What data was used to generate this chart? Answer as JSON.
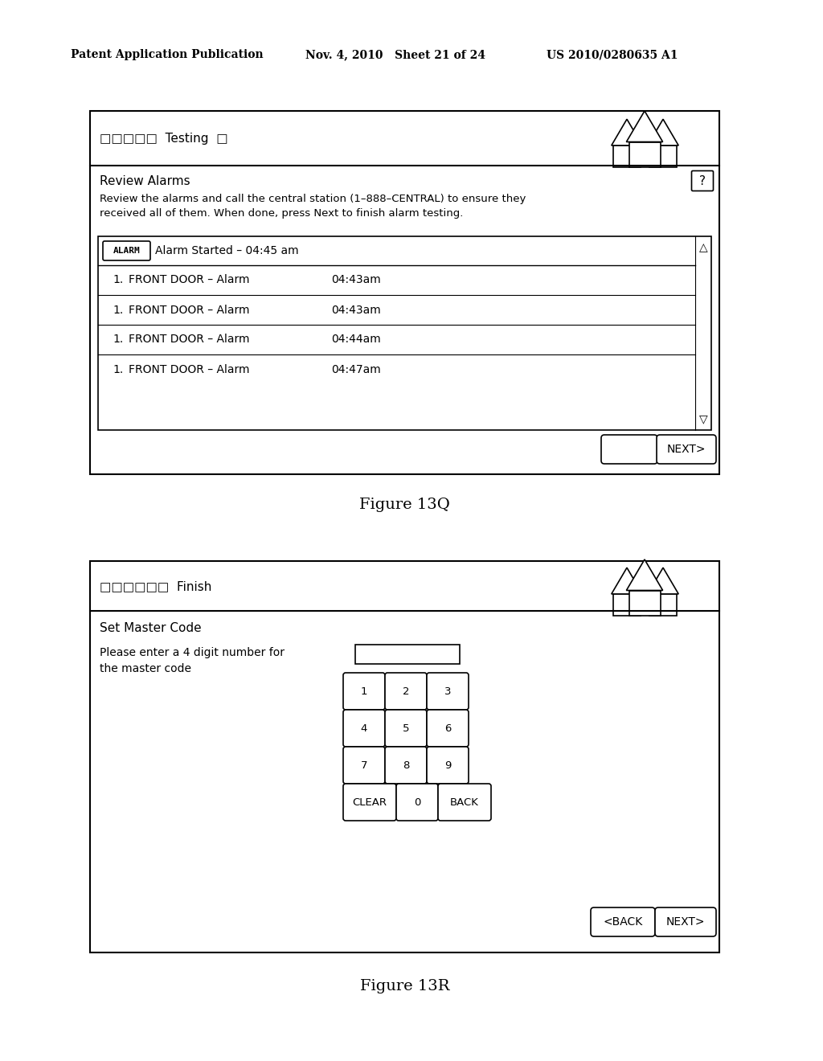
{
  "bg_color": "#ffffff",
  "text_color": "#000000",
  "header_left": "Patent Application Publication",
  "header_mid": "Nov. 4, 2010   Sheet 21 of 24",
  "header_right": "US 2010/0280635 A1",
  "fig13q_label": "Figure 13Q",
  "fig13r_label": "Figure 13R",
  "panel1": {
    "title_text": "□□□□□  Testing  □",
    "section_title": "Review Alarms",
    "description_line1": "Review the alarms and call the central station (1–888–CENTRAL) to ensure they",
    "description_line2": "received all of them. When done, press Next to finish alarm testing.",
    "alarm_header_text": "Alarm Started – 04:45 am",
    "alarm_rows": [
      {
        "num": "1.",
        "desc": "FRONT DOOR – Alarm",
        "time": "04:43am"
      },
      {
        "num": "1.",
        "desc": "FRONT DOOR – Alarm",
        "time": "04:43am"
      },
      {
        "num": "1.",
        "desc": "FRONT DOOR – Alarm",
        "time": "04:44am"
      },
      {
        "num": "1.",
        "desc": "FRONT DOOR – Alarm",
        "time": "04:47am"
      }
    ],
    "button_next": "NEXT>"
  },
  "panel2": {
    "title_text": "□□□□□□  Finish",
    "section_title": "Set Master Code",
    "desc_line1": "Please enter a 4 digit number for",
    "desc_line2": "the master code",
    "keypad_rows": [
      [
        "1",
        "2",
        "3"
      ],
      [
        "4",
        "5",
        "6"
      ],
      [
        "7",
        "8",
        "9"
      ],
      [
        "CLEAR",
        "0",
        "BACK"
      ]
    ],
    "button_back": "<BACK",
    "button_next": "NEXT>"
  }
}
